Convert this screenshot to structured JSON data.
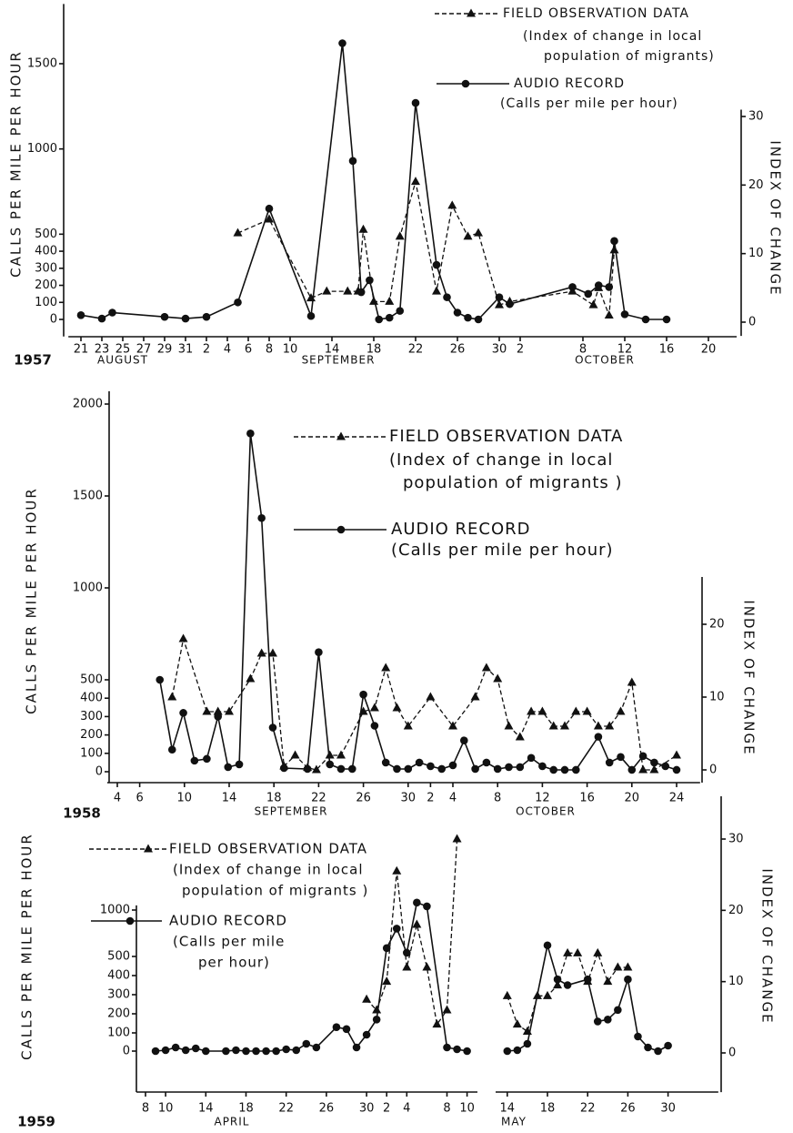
{
  "chart_data": [
    {
      "type": "line",
      "year": "1957",
      "months": [
        "AUGUST",
        "SEPTEMBER",
        "OCTOBER"
      ],
      "ylabel": "CALLS PER MILE PER HOUR",
      "y2label": "INDEX OF CHANGE",
      "xlim": [
        -1.2,
        62.7
      ],
      "xticks": [
        {
          "value": 0,
          "label": "21"
        },
        {
          "value": 2,
          "label": "23"
        },
        {
          "value": 4,
          "label": "25"
        },
        {
          "value": 6,
          "label": "27"
        },
        {
          "value": 8,
          "label": "29"
        },
        {
          "value": 10,
          "label": "31"
        },
        {
          "value": 12,
          "label": "2"
        },
        {
          "value": 14,
          "label": "4"
        },
        {
          "value": 16,
          "label": "6"
        },
        {
          "value": 18,
          "label": "8"
        },
        {
          "value": 20,
          "label": "10"
        },
        {
          "value": 24,
          "label": "14"
        },
        {
          "value": 28,
          "label": "18"
        },
        {
          "value": 32,
          "label": "22"
        },
        {
          "value": 36,
          "label": "26"
        },
        {
          "value": 40,
          "label": "30"
        },
        {
          "value": 42,
          "label": "2"
        },
        {
          "value": 48,
          "label": "8"
        },
        {
          "value": 52,
          "label": "12"
        },
        {
          "value": 56,
          "label": "16"
        },
        {
          "value": 60,
          "label": "20"
        }
      ],
      "ylim": [
        -100,
        1850
      ],
      "yticks": [
        0,
        100,
        200,
        300,
        400,
        500,
        1000,
        1500
      ],
      "y2lim": [
        -2,
        31
      ],
      "y2ticks": [
        0,
        10,
        20,
        30
      ],
      "series": [
        {
          "name": "FIELD OBSERVATION DATA",
          "description": [
            "(Index of change in local",
            "population of migrants)"
          ],
          "axis": "y2",
          "color": "#111111",
          "x": [
            15,
            18,
            22,
            23.5,
            25.5,
            26.5,
            27,
            28,
            29.5,
            30.5,
            32,
            34,
            35.5,
            37,
            38,
            40,
            41,
            47,
            49,
            49.5,
            50.5,
            51
          ],
          "values": [
            13,
            15,
            3.5,
            4.5,
            4.5,
            4.5,
            13.5,
            3,
            3,
            12.5,
            20.5,
            4.5,
            17,
            12.5,
            13,
            2.5,
            3,
            4.5,
            2.5,
            5,
            1,
            10.5
          ]
        },
        {
          "name": "AUDIO RECORD",
          "description": [
            "(Calls per mile per hour)"
          ],
          "color": "#111111",
          "x": [
            0,
            2,
            3,
            8,
            10,
            12,
            15,
            18,
            22,
            25,
            26,
            26.8,
            27.6,
            28.5,
            29.5,
            30.5,
            32,
            34,
            35,
            36,
            37,
            38,
            40,
            41,
            47,
            48.5,
            49.5,
            50.5,
            51,
            52,
            54,
            56
          ],
          "values": [
            25,
            5,
            40,
            15,
            5,
            15,
            100,
            650,
            20,
            1620,
            930,
            160,
            230,
            0,
            10,
            50,
            1270,
            320,
            130,
            40,
            10,
            0,
            130,
            90,
            190,
            150,
            200,
            190,
            460,
            30,
            0,
            0
          ]
        }
      ]
    },
    {
      "type": "line",
      "year": "1958",
      "months": [
        "SEPTEMBER",
        "OCTOBER"
      ],
      "ylabel": "CALLS PER MILE PER HOUR",
      "y2label": "INDEX OF CHANGE",
      "xlim": [
        -0.9,
        52.1
      ],
      "xticks": [
        {
          "value": 0,
          "label": "4"
        },
        {
          "value": 2,
          "label": "6"
        },
        {
          "value": 6,
          "label": "10"
        },
        {
          "value": 10,
          "label": "14"
        },
        {
          "value": 14,
          "label": "18"
        },
        {
          "value": 18,
          "label": "22"
        },
        {
          "value": 22,
          "label": "26"
        },
        {
          "value": 26,
          "label": "30"
        },
        {
          "value": 28,
          "label": "2"
        },
        {
          "value": 30,
          "label": "4"
        },
        {
          "value": 34,
          "label": "8"
        },
        {
          "value": 38,
          "label": "12"
        },
        {
          "value": 42,
          "label": "16"
        },
        {
          "value": 46,
          "label": "20"
        },
        {
          "value": 50,
          "label": "24"
        }
      ],
      "ylim": [
        -60,
        2070
      ],
      "yticks": [
        0,
        100,
        200,
        300,
        400,
        500,
        1000,
        1500,
        2000
      ],
      "y2lim": [
        -1.75,
        26.5
      ],
      "y2ticks": [
        0,
        10,
        20
      ],
      "series": [
        {
          "name": "FIELD OBSERVATION DATA",
          "description": [
            "(Index of change in local",
            "population of migrants )"
          ],
          "axis": "y2",
          "color": "#111111",
          "x": [
            4.9,
            5.9,
            8,
            9,
            10,
            11.9,
            12.9,
            13.9,
            14.9,
            15.9,
            17,
            17.8,
            19,
            20,
            22,
            23,
            24,
            25,
            26,
            28,
            30,
            32,
            33,
            34,
            35,
            36,
            37,
            38,
            39,
            40,
            41,
            42,
            43,
            44,
            45,
            46,
            47,
            48,
            50
          ],
          "values": [
            10,
            18,
            8,
            8,
            8,
            12.5,
            16,
            16,
            0.5,
            2,
            0.3,
            0,
            2,
            2,
            8,
            8.5,
            14,
            8.5,
            6,
            10,
            6,
            10,
            14,
            12.5,
            6,
            4.5,
            8,
            8,
            6,
            6,
            8,
            8,
            6,
            6,
            8,
            12,
            0,
            0,
            2
          ]
        },
        {
          "name": "AUDIO RECORD",
          "description": [
            "(Calls per mile per hour)"
          ],
          "color": "#111111",
          "x": [
            3.8,
            4.9,
            5.9,
            6.9,
            8,
            9,
            9.9,
            10.9,
            11.9,
            12.9,
            13.9,
            14.9,
            17,
            18,
            19,
            20,
            21,
            22,
            23,
            24,
            25,
            26,
            27,
            28,
            29,
            30,
            31,
            32,
            33,
            34,
            35,
            36,
            37,
            38,
            39,
            40,
            41,
            43,
            44,
            45,
            46,
            47,
            48,
            49,
            50
          ],
          "values": [
            500,
            120,
            320,
            60,
            70,
            300,
            25,
            40,
            1840,
            1380,
            240,
            20,
            15,
            650,
            40,
            15,
            15,
            420,
            250,
            50,
            15,
            15,
            50,
            30,
            15,
            35,
            170,
            15,
            50,
            15,
            25,
            25,
            75,
            30,
            10,
            10,
            10,
            190,
            50,
            80,
            10,
            85,
            50,
            30,
            10
          ]
        }
      ]
    },
    {
      "type": "line",
      "year": "1959",
      "months": [
        "APRIL",
        "MAY"
      ],
      "ylabel": "CALLS PER MILE PER HOUR",
      "y2label": "INDEX OF CHANGE",
      "xlim": [
        -0.9,
        57
      ],
      "xticks": [
        {
          "value": 0,
          "label": "8"
        },
        {
          "value": 2,
          "label": "10"
        },
        {
          "value": 6,
          "label": "14"
        },
        {
          "value": 10,
          "label": "18"
        },
        {
          "value": 14,
          "label": "22"
        },
        {
          "value": 18,
          "label": "26"
        },
        {
          "value": 22,
          "label": "30"
        },
        {
          "value": 24,
          "label": "2"
        },
        {
          "value": 26,
          "label": "4"
        },
        {
          "value": 30,
          "label": "8"
        },
        {
          "value": 32,
          "label": "10"
        },
        {
          "value": 36,
          "label": "14"
        },
        {
          "value": 40,
          "label": "18"
        },
        {
          "value": 44,
          "label": "22"
        },
        {
          "value": 48,
          "label": "26"
        },
        {
          "value": 52,
          "label": "30"
        }
      ],
      "ylim": [
        -225,
        1050
      ],
      "yticks": [
        0,
        100,
        200,
        300,
        400,
        500,
        1000
      ],
      "y2lim": [
        -5.5,
        36
      ],
      "y2ticks": [
        0,
        10,
        20,
        30
      ],
      "series": [
        {
          "name": "FIELD OBSERVATION DATA",
          "description": [
            "(Index of change in local",
            "population of migrants )"
          ],
          "axis": "y2",
          "color": "#111111",
          "x": [
            22,
            23,
            24,
            25,
            26,
            27,
            28,
            29,
            30,
            31,
            null,
            36,
            37,
            38,
            39,
            40,
            41,
            42,
            43,
            44,
            45,
            46,
            47,
            48
          ],
          "values": [
            7.5,
            6,
            10,
            25.5,
            12,
            18,
            12,
            4,
            6,
            30,
            null,
            8,
            4,
            3,
            8,
            8,
            9.5,
            14,
            14,
            10,
            14,
            10,
            12,
            12
          ]
        },
        {
          "name": "AUDIO RECORD",
          "description": [
            "(Calls per mile",
            "per hour)"
          ],
          "color": "#111111",
          "x": [
            1,
            2,
            3,
            4,
            5,
            6,
            8,
            9,
            10,
            11,
            12,
            13,
            14,
            15,
            16,
            17,
            19,
            20,
            21,
            22,
            23,
            24,
            25,
            26,
            27,
            28,
            30,
            31,
            32,
            null,
            36,
            37,
            38,
            40,
            41,
            42,
            44,
            45,
            46,
            47,
            48,
            49,
            50,
            51,
            52
          ],
          "values": [
            0,
            5,
            20,
            5,
            15,
            0,
            0,
            5,
            0,
            0,
            0,
            0,
            10,
            5,
            40,
            20,
            130,
            120,
            20,
            90,
            170,
            590,
            800,
            540,
            1080,
            1040,
            20,
            10,
            0,
            null,
            0,
            5,
            40,
            620,
            380,
            350,
            380,
            160,
            170,
            220,
            380,
            80,
            20,
            0,
            30
          ]
        }
      ]
    }
  ]
}
